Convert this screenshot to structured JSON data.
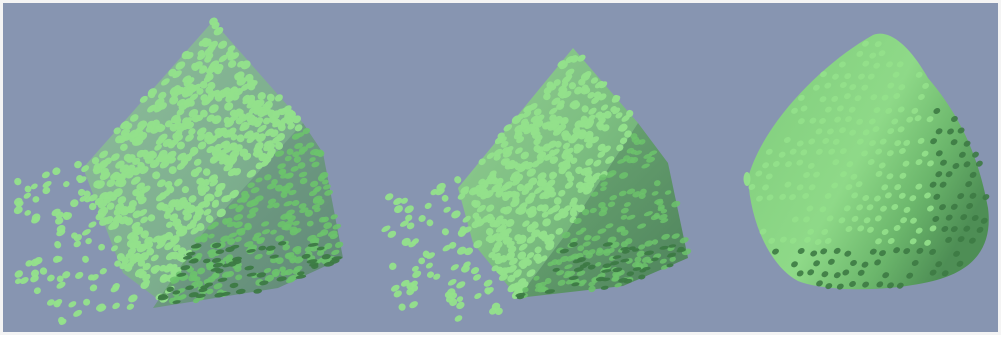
{
  "figure": {
    "panel_count": 3,
    "colors": {
      "background": "#8795b1",
      "border": "#f4f4f4",
      "point_light": "#93e18b",
      "point_mid": "#6cc36b",
      "point_dark": "#3d7a44",
      "surface_light": "#8ed585",
      "surface_mid": "#5ea85e",
      "surface_dark": "#3f7c45"
    },
    "panels": [
      {
        "label": "",
        "surface_opacity": 0.55,
        "scatter_outliers": true
      },
      {
        "label": "",
        "surface_opacity": 0.8,
        "scatter_outliers": true
      },
      {
        "label": "",
        "surface_opacity": 0.95,
        "scatter_outliers": false
      }
    ]
  }
}
